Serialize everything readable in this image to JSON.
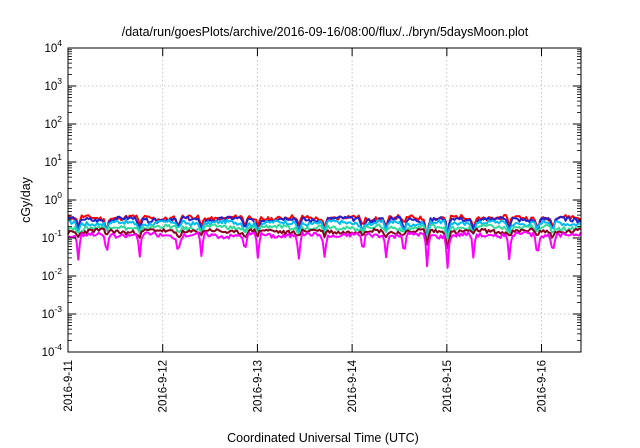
{
  "chart_data": {
    "type": "line",
    "title": "/data/run/goesPlots/archive/2016-09-16/08:00/flux/../bryn/5daysMoon.plot",
    "xlabel": "Coordinated Universal Time (UTC)",
    "ylabel": "cGy/day",
    "xlim": [
      "2016-09-11 00:00",
      "2016-09-16 10:00"
    ],
    "ylim": [
      0.0001,
      10000
    ],
    "yscale": "log",
    "grid": true,
    "x_ticks": [
      "2016-9-11",
      "2016-9-12",
      "2016-9-13",
      "2016-9-14",
      "2016-9-15",
      "2016-9-16"
    ],
    "y_ticks": [
      {
        "base": "10",
        "exp": "4"
      },
      {
        "base": "10",
        "exp": "3"
      },
      {
        "base": "10",
        "exp": "2"
      },
      {
        "base": "10",
        "exp": "1"
      },
      {
        "base": "10",
        "exp": "0"
      },
      {
        "base": "10",
        "exp": "-1"
      },
      {
        "base": "10",
        "exp": "-2"
      },
      {
        "base": "10",
        "exp": "-3"
      },
      {
        "base": "10",
        "exp": "-4"
      }
    ],
    "series": [
      {
        "color": "#ff0000",
        "base": 0.34,
        "dip": 0.55
      },
      {
        "color": "#2222cc",
        "base": 0.31,
        "dip": 0.45
      },
      {
        "color": "#00bbee",
        "base": 0.25,
        "dip": 0.6
      },
      {
        "color": "#33dd99",
        "base": 0.19,
        "dip": 0.7
      },
      {
        "color": "#8b0020",
        "base": 0.15,
        "dip": 0.75
      },
      {
        "color": "#ff00ff",
        "base": 0.12,
        "dip": 0.25
      }
    ]
  }
}
